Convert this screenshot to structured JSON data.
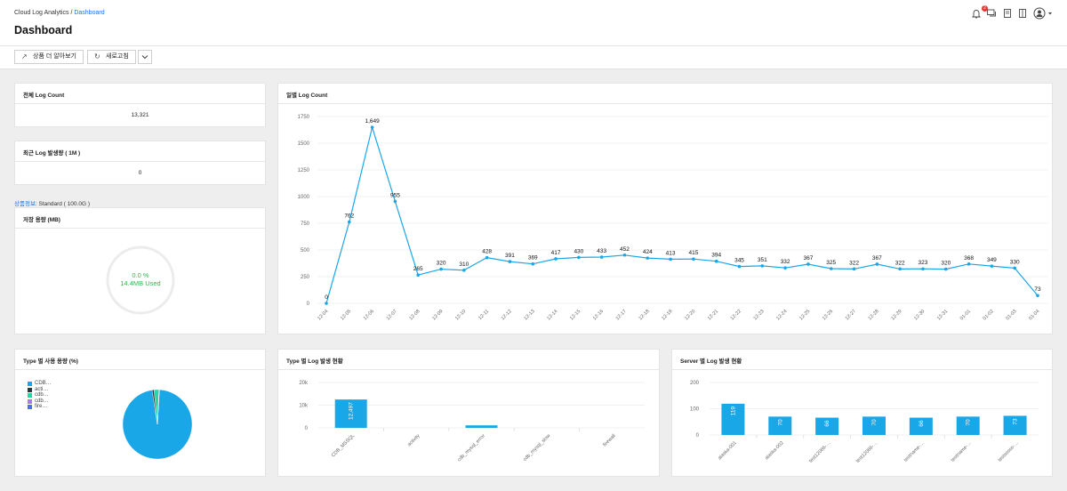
{
  "breadcrumb": {
    "root": "Cloud Log Analytics",
    "sep": "/",
    "current": "Dashboard"
  },
  "page_title": "Dashboard",
  "toolbar": {
    "learn_more": "상품 더 알아보기",
    "refresh": "새로고침"
  },
  "header_icons": {
    "notification_count": "2"
  },
  "colors": {
    "accent": "#1aa7e8",
    "used": "#2db84d"
  },
  "cards": {
    "total_log": {
      "title": "전체 Log Count",
      "value": "13,321"
    },
    "recent_log": {
      "title": "최근 Log 발생량 ( 1M )",
      "value": "0"
    },
    "product_info": {
      "label": "상품정보",
      "value": ": Standard ( 100.0G )"
    },
    "storage": {
      "title": "저장 용량 (MB)",
      "percent": "0.0 %",
      "used": "14.4MB Used"
    },
    "type_usage": {
      "title": "Type 별 사용 용량 (%)"
    },
    "daily": {
      "title": "일별 Log Count"
    },
    "type_logs": {
      "title": "Type 별 Log 발생 현황"
    },
    "server_logs": {
      "title": "Server 별 Log 발생 현황"
    }
  },
  "chart_data": [
    {
      "type": "line",
      "title": "일별 Log Count",
      "x": [
        "12-04",
        "12-05",
        "12-06",
        "12-07",
        "12-08",
        "12-09",
        "12-10",
        "12-11",
        "12-12",
        "12-13",
        "12-14",
        "12-15",
        "12-16",
        "12-17",
        "12-18",
        "12-19",
        "12-20",
        "12-21",
        "12-22",
        "12-23",
        "12-24",
        "12-25",
        "12-26",
        "12-27",
        "12-28",
        "12-29",
        "12-30",
        "12-31",
        "01-01",
        "01-02",
        "01-03",
        "01-04"
      ],
      "values": [
        0,
        762,
        1649,
        955,
        265,
        320,
        310,
        428,
        391,
        369,
        417,
        430,
        433,
        452,
        424,
        413,
        415,
        394,
        345,
        351,
        332,
        367,
        325,
        322,
        367,
        322,
        323,
        320,
        368,
        349,
        330,
        73
      ],
      "labels": [
        "0",
        "762",
        "1,649",
        "955",
        "265",
        "320",
        "310",
        "428",
        "391",
        "369",
        "417",
        "430",
        "433",
        "452",
        "424",
        "413",
        "415",
        "394",
        "345",
        "351",
        "332",
        "367",
        "325",
        "322",
        "367",
        "322",
        "323",
        "320",
        "368",
        "349",
        "330",
        "73"
      ],
      "yticks": [
        "0",
        "250",
        "500",
        "750",
        "1000",
        "1250",
        "1500",
        "1750"
      ],
      "ylim": [
        0,
        1750
      ]
    },
    {
      "type": "pie",
      "title": "Type 별 사용 용량 (%)",
      "legend": [
        {
          "name": "CDB…",
          "color": "#1aa7e8"
        },
        {
          "name": "acti…",
          "color": "#333333"
        },
        {
          "name": "cdb…",
          "color": "#2ad4a3"
        },
        {
          "name": "cdb…",
          "color": "#a57bf2"
        },
        {
          "name": "fire…",
          "color": "#4a6cf7"
        }
      ],
      "values": [
        96.6,
        0.9,
        2.3,
        0.1,
        0.1
      ]
    },
    {
      "type": "bar",
      "title": "Type 별 Log 발생 현황",
      "categories": [
        "CDB_MSSQL",
        "activity",
        "cdb_mysql_error",
        "cdb_mysql_slow",
        "firewall"
      ],
      "values": [
        12497,
        0,
        1100,
        0,
        0
      ],
      "labels": [
        "12,497",
        "",
        "",
        "",
        ""
      ],
      "yticks": [
        "0",
        "10k",
        "20k"
      ],
      "ylim": [
        0,
        20000
      ]
    },
    {
      "type": "bar",
      "title": "Server 별 Log 발생 현황",
      "categories": [
        "alaska-001",
        "alaska-002",
        "test12066-…",
        "test12066-…",
        "testname-…",
        "testname-…",
        "testsssss-…"
      ],
      "values": [
        119,
        70,
        66,
        70,
        66,
        70,
        73
      ],
      "labels": [
        "119",
        "70",
        "66",
        "70",
        "66",
        "70",
        "73"
      ],
      "yticks": [
        "0",
        "100",
        "200"
      ],
      "ylim": [
        0,
        200
      ]
    }
  ]
}
